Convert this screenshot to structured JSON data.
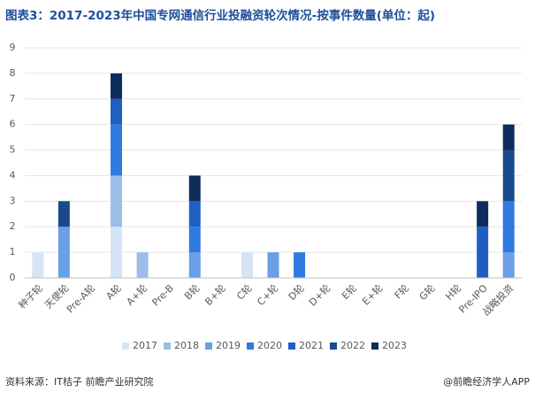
{
  "chart_data": {
    "type": "stacked-bar",
    "title": "图表3：2017-2023年中国专网通信行业投融资轮次情况-按事件数量(单位：起)",
    "categories": [
      "种子轮",
      "天使轮",
      "Pre-A轮",
      "A轮",
      "A+轮",
      "Pre-B",
      "B轮",
      "B+轮",
      "C轮",
      "C+轮",
      "D轮",
      "D+轮",
      "E轮",
      "E+轮",
      "F轮",
      "G轮",
      "H轮",
      "Pre-IPO",
      "战略投资"
    ],
    "series": [
      {
        "name": "2017",
        "color": "#d6e4f8",
        "values": [
          1,
          0,
          0,
          2,
          0,
          0,
          0,
          0,
          1,
          0,
          0,
          0,
          0,
          0,
          0,
          0,
          0,
          0,
          0
        ]
      },
      {
        "name": "2018",
        "color": "#9dbde9",
        "values": [
          0,
          0,
          0,
          2,
          1,
          0,
          0,
          0,
          0,
          0,
          0,
          0,
          0,
          0,
          0,
          0,
          0,
          0,
          0
        ]
      },
      {
        "name": "2019",
        "color": "#6a9ee6",
        "values": [
          0,
          2,
          0,
          0,
          0,
          0,
          1,
          0,
          0,
          1,
          0,
          0,
          0,
          0,
          0,
          0,
          0,
          0,
          1
        ]
      },
      {
        "name": "2020",
        "color": "#2f7ae0",
        "values": [
          0,
          0,
          0,
          2,
          0,
          0,
          1,
          0,
          0,
          0,
          1,
          0,
          0,
          0,
          0,
          0,
          0,
          0,
          2
        ]
      },
      {
        "name": "2021",
        "color": "#1f5fc2",
        "values": [
          0,
          0,
          0,
          1,
          0,
          0,
          1,
          0,
          0,
          0,
          0,
          0,
          0,
          0,
          0,
          0,
          0,
          2,
          0
        ]
      },
      {
        "name": "2022",
        "color": "#1a4a8c",
        "values": [
          0,
          1,
          0,
          0,
          0,
          0,
          0,
          0,
          0,
          0,
          0,
          0,
          0,
          0,
          0,
          0,
          0,
          0,
          2
        ]
      },
      {
        "name": "2023",
        "color": "#0f2d5a",
        "values": [
          0,
          0,
          0,
          1,
          0,
          0,
          1,
          0,
          0,
          0,
          0,
          0,
          0,
          0,
          0,
          0,
          0,
          1,
          1
        ]
      }
    ],
    "ylim": [
      0,
      9
    ],
    "yticks": [
      0,
      1,
      2,
      3,
      4,
      5,
      6,
      7,
      8,
      9
    ],
    "grid": true,
    "source": "资料来源：IT桔子 前瞻产业研究院",
    "credit": "@前瞻经济学人APP"
  }
}
